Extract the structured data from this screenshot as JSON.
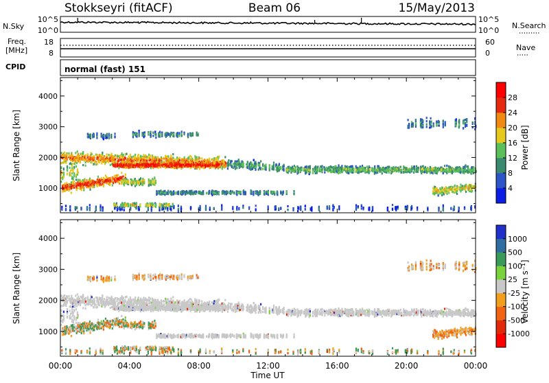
{
  "header": {
    "station": "Stokkseyri (fitACF)",
    "beam": "Beam 06",
    "date": "15/May/2013"
  },
  "top_panels": {
    "nsky_label": "N.Sky",
    "nsky_ticks": [
      "10^5",
      "10^0"
    ],
    "nsearch_label": "N.Search",
    "nsearch_ticks": [
      "10^5",
      "10^0"
    ],
    "freq_label_line1": "Freq.",
    "freq_label_line2": "[MHz]",
    "freq_ticks": [
      "18",
      "8"
    ],
    "nave_label": "Nave",
    "nave_ticks": [
      "60",
      "0"
    ],
    "cpid_label": "CPID",
    "cpid_value": "normal (fast) 151"
  },
  "chart_data": [
    {
      "type": "heatmap",
      "name": "power",
      "ylabel": "Slant Range [km]",
      "yticks": [
        1000,
        2000,
        3000,
        4000
      ],
      "ylim": [
        200,
        4600
      ],
      "colorbar_label": "Power [dB]",
      "colorbar_ticks": [
        "4",
        "8",
        "12",
        "16",
        "20",
        "24",
        "28"
      ],
      "colorbar_colors": [
        "#0a1ee6",
        "#2e55c8",
        "#3a8a70",
        "#5cc05a",
        "#e6c81e",
        "#f08a14",
        "#e62a0e",
        "#ff0000"
      ]
    },
    {
      "type": "heatmap",
      "name": "velocity",
      "ylabel": "Slant Range [km]",
      "yticks": [
        1000,
        2000,
        3000,
        4000
      ],
      "ylim": [
        200,
        4600
      ],
      "colorbar_label": "Velocity [m s⁻¹]",
      "colorbar_ticks": [
        "1000",
        "500",
        "100",
        "25",
        "-25",
        "-100",
        "-500",
        "-1000"
      ],
      "colorbar_colors": [
        "#2030c8",
        "#2e6ea0",
        "#3a9a5a",
        "#7ad23c",
        "#c8c8c8",
        "#f0a01e",
        "#f06414",
        "#e02a0a",
        "#ff0000"
      ]
    }
  ],
  "time_axis": {
    "label": "Time UT",
    "ticks": [
      "00:00",
      "04:00",
      "08:00",
      "12:00",
      "16:00",
      "20:00",
      "00:00"
    ]
  }
}
